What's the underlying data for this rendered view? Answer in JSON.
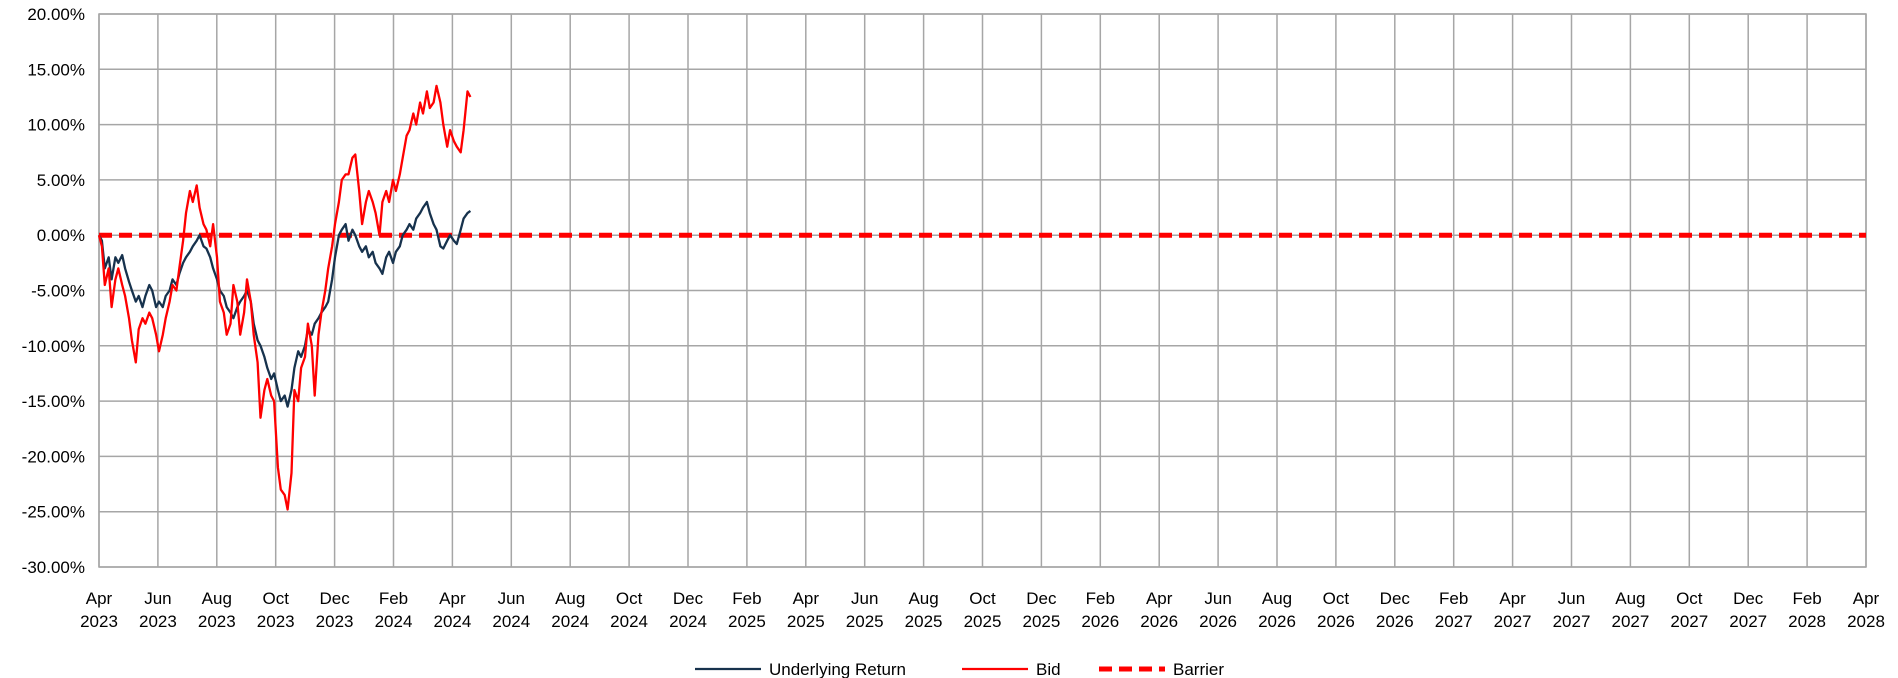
{
  "chart_data": {
    "type": "line",
    "title": "",
    "xlabel": "",
    "ylabel": "",
    "grid": true,
    "legend_position": "bottom",
    "ylim": [
      -0.3,
      0.2
    ],
    "y_ticks": [
      "20.00%",
      "15.00%",
      "10.00%",
      "5.00%",
      "0.00%",
      "-5.00%",
      "-10.00%",
      "-15.00%",
      "-20.00%",
      "-25.00%",
      "-30.00%"
    ],
    "y_tick_values": [
      0.2,
      0.15,
      0.1,
      0.05,
      0.0,
      -0.05,
      -0.1,
      -0.15,
      -0.2,
      -0.25,
      -0.3
    ],
    "x_ticks": [
      {
        "month": "Apr",
        "year": "2023"
      },
      {
        "month": "Jun",
        "year": "2023"
      },
      {
        "month": "Aug",
        "year": "2023"
      },
      {
        "month": "Oct",
        "year": "2023"
      },
      {
        "month": "Dec",
        "year": "2023"
      },
      {
        "month": "Feb",
        "year": "2024"
      },
      {
        "month": "Apr",
        "year": "2024"
      },
      {
        "month": "Jun",
        "year": "2024"
      },
      {
        "month": "Aug",
        "year": "2024"
      },
      {
        "month": "Oct",
        "year": "2024"
      },
      {
        "month": "Dec",
        "year": "2024"
      },
      {
        "month": "Feb",
        "year": "2025"
      },
      {
        "month": "Apr",
        "year": "2025"
      },
      {
        "month": "Jun",
        "year": "2025"
      },
      {
        "month": "Aug",
        "year": "2025"
      },
      {
        "month": "Oct",
        "year": "2025"
      },
      {
        "month": "Dec",
        "year": "2025"
      },
      {
        "month": "Feb",
        "year": "2026"
      },
      {
        "month": "Apr",
        "year": "2026"
      },
      {
        "month": "Jun",
        "year": "2026"
      },
      {
        "month": "Aug",
        "year": "2026"
      },
      {
        "month": "Oct",
        "year": "2026"
      },
      {
        "month": "Dec",
        "year": "2026"
      },
      {
        "month": "Feb",
        "year": "2027"
      },
      {
        "month": "Apr",
        "year": "2027"
      },
      {
        "month": "Jun",
        "year": "2027"
      },
      {
        "month": "Aug",
        "year": "2027"
      },
      {
        "month": "Oct",
        "year": "2027"
      },
      {
        "month": "Dec",
        "year": "2027"
      },
      {
        "month": "Feb",
        "year": "2028"
      },
      {
        "month": "Apr",
        "year": "2028"
      }
    ],
    "x_range": [
      "2023-04-01",
      "2028-04-01"
    ],
    "series": [
      {
        "name": "Underlying Return",
        "color": "#17324d",
        "style": "solid",
        "points": [
          [
            "2023-04-01",
            0.0
          ],
          [
            "2023-04-04",
            -0.005
          ],
          [
            "2023-04-07",
            -0.03
          ],
          [
            "2023-04-11",
            -0.02
          ],
          [
            "2023-04-14",
            -0.04
          ],
          [
            "2023-04-18",
            -0.02
          ],
          [
            "2023-04-21",
            -0.025
          ],
          [
            "2023-04-25",
            -0.018
          ],
          [
            "2023-04-28",
            -0.03
          ],
          [
            "2023-05-02",
            -0.042
          ],
          [
            "2023-05-05",
            -0.05
          ],
          [
            "2023-05-09",
            -0.06
          ],
          [
            "2023-05-12",
            -0.055
          ],
          [
            "2023-05-16",
            -0.065
          ],
          [
            "2023-05-19",
            -0.055
          ],
          [
            "2023-05-23",
            -0.045
          ],
          [
            "2023-05-26",
            -0.05
          ],
          [
            "2023-05-30",
            -0.065
          ],
          [
            "2023-06-02",
            -0.06
          ],
          [
            "2023-06-06",
            -0.065
          ],
          [
            "2023-06-09",
            -0.055
          ],
          [
            "2023-06-13",
            -0.05
          ],
          [
            "2023-06-16",
            -0.04
          ],
          [
            "2023-06-20",
            -0.045
          ],
          [
            "2023-06-23",
            -0.035
          ],
          [
            "2023-06-27",
            -0.025
          ],
          [
            "2023-06-30",
            -0.02
          ],
          [
            "2023-07-04",
            -0.015
          ],
          [
            "2023-07-07",
            -0.01
          ],
          [
            "2023-07-11",
            -0.005
          ],
          [
            "2023-07-14",
            0.0
          ],
          [
            "2023-07-18",
            -0.01
          ],
          [
            "2023-07-21",
            -0.012
          ],
          [
            "2023-07-25",
            -0.02
          ],
          [
            "2023-07-28",
            -0.03
          ],
          [
            "2023-08-01",
            -0.04
          ],
          [
            "2023-08-04",
            -0.05
          ],
          [
            "2023-08-08",
            -0.055
          ],
          [
            "2023-08-11",
            -0.065
          ],
          [
            "2023-08-15",
            -0.07
          ],
          [
            "2023-08-18",
            -0.075
          ],
          [
            "2023-08-22",
            -0.065
          ],
          [
            "2023-08-25",
            -0.06
          ],
          [
            "2023-08-29",
            -0.055
          ],
          [
            "2023-09-01",
            -0.05
          ],
          [
            "2023-09-05",
            -0.06
          ],
          [
            "2023-09-08",
            -0.08
          ],
          [
            "2023-09-12",
            -0.095
          ],
          [
            "2023-09-15",
            -0.1
          ],
          [
            "2023-09-19",
            -0.11
          ],
          [
            "2023-09-22",
            -0.12
          ],
          [
            "2023-09-26",
            -0.13
          ],
          [
            "2023-09-29",
            -0.125
          ],
          [
            "2023-10-03",
            -0.14
          ],
          [
            "2023-10-06",
            -0.15
          ],
          [
            "2023-10-10",
            -0.145
          ],
          [
            "2023-10-13",
            -0.155
          ],
          [
            "2023-10-17",
            -0.14
          ],
          [
            "2023-10-20",
            -0.12
          ],
          [
            "2023-10-24",
            -0.105
          ],
          [
            "2023-10-27",
            -0.11
          ],
          [
            "2023-10-31",
            -0.1
          ],
          [
            "2023-11-03",
            -0.085
          ],
          [
            "2023-11-07",
            -0.09
          ],
          [
            "2023-11-10",
            -0.08
          ],
          [
            "2023-11-14",
            -0.075
          ],
          [
            "2023-11-17",
            -0.07
          ],
          [
            "2023-11-21",
            -0.065
          ],
          [
            "2023-11-24",
            -0.06
          ],
          [
            "2023-11-28",
            -0.04
          ],
          [
            "2023-12-01",
            -0.02
          ],
          [
            "2023-12-05",
            0.0
          ],
          [
            "2023-12-08",
            0.005
          ],
          [
            "2023-12-12",
            0.01
          ],
          [
            "2023-12-15",
            -0.005
          ],
          [
            "2023-12-19",
            0.005
          ],
          [
            "2023-12-22",
            0.0
          ],
          [
            "2023-12-26",
            -0.01
          ],
          [
            "2023-12-29",
            -0.015
          ],
          [
            "2024-01-02",
            -0.01
          ],
          [
            "2024-01-05",
            -0.02
          ],
          [
            "2024-01-09",
            -0.015
          ],
          [
            "2024-01-12",
            -0.025
          ],
          [
            "2024-01-16",
            -0.03
          ],
          [
            "2024-01-19",
            -0.035
          ],
          [
            "2024-01-23",
            -0.02
          ],
          [
            "2024-01-26",
            -0.015
          ],
          [
            "2024-01-30",
            -0.025
          ],
          [
            "2024-02-02",
            -0.015
          ],
          [
            "2024-02-06",
            -0.01
          ],
          [
            "2024-02-09",
            0.0
          ],
          [
            "2024-02-13",
            0.005
          ],
          [
            "2024-02-16",
            0.01
          ],
          [
            "2024-02-20",
            0.005
          ],
          [
            "2024-02-23",
            0.015
          ],
          [
            "2024-02-27",
            0.02
          ],
          [
            "2024-03-01",
            0.025
          ],
          [
            "2024-03-05",
            0.03
          ],
          [
            "2024-03-08",
            0.02
          ],
          [
            "2024-03-12",
            0.01
          ],
          [
            "2024-03-15",
            0.005
          ],
          [
            "2024-03-19",
            -0.01
          ],
          [
            "2024-03-22",
            -0.012
          ],
          [
            "2024-03-26",
            -0.005
          ],
          [
            "2024-03-29",
            0.0
          ],
          [
            "2024-04-02",
            -0.005
          ],
          [
            "2024-04-05",
            -0.008
          ],
          [
            "2024-04-09",
            0.005
          ],
          [
            "2024-04-12",
            0.015
          ],
          [
            "2024-04-16",
            0.02
          ],
          [
            "2024-04-19",
            0.022
          ]
        ]
      },
      {
        "name": "Bid",
        "color": "#ff0000",
        "style": "solid",
        "points": [
          [
            "2023-04-01",
            0.0
          ],
          [
            "2023-04-04",
            -0.01
          ],
          [
            "2023-04-07",
            -0.045
          ],
          [
            "2023-04-11",
            -0.03
          ],
          [
            "2023-04-14",
            -0.065
          ],
          [
            "2023-04-18",
            -0.04
          ],
          [
            "2023-04-21",
            -0.03
          ],
          [
            "2023-04-25",
            -0.045
          ],
          [
            "2023-04-28",
            -0.055
          ],
          [
            "2023-05-02",
            -0.075
          ],
          [
            "2023-05-05",
            -0.095
          ],
          [
            "2023-05-09",
            -0.115
          ],
          [
            "2023-05-12",
            -0.085
          ],
          [
            "2023-05-16",
            -0.075
          ],
          [
            "2023-05-19",
            -0.08
          ],
          [
            "2023-05-23",
            -0.07
          ],
          [
            "2023-05-26",
            -0.075
          ],
          [
            "2023-05-30",
            -0.09
          ],
          [
            "2023-06-02",
            -0.105
          ],
          [
            "2023-06-06",
            -0.09
          ],
          [
            "2023-06-09",
            -0.075
          ],
          [
            "2023-06-13",
            -0.06
          ],
          [
            "2023-06-16",
            -0.045
          ],
          [
            "2023-06-20",
            -0.05
          ],
          [
            "2023-06-23",
            -0.03
          ],
          [
            "2023-06-27",
            -0.005
          ],
          [
            "2023-06-30",
            0.02
          ],
          [
            "2023-07-04",
            0.04
          ],
          [
            "2023-07-07",
            0.03
          ],
          [
            "2023-07-11",
            0.045
          ],
          [
            "2023-07-14",
            0.025
          ],
          [
            "2023-07-18",
            0.01
          ],
          [
            "2023-07-21",
            0.005
          ],
          [
            "2023-07-25",
            -0.01
          ],
          [
            "2023-07-28",
            0.01
          ],
          [
            "2023-08-01",
            -0.02
          ],
          [
            "2023-08-04",
            -0.06
          ],
          [
            "2023-08-08",
            -0.07
          ],
          [
            "2023-08-11",
            -0.09
          ],
          [
            "2023-08-15",
            -0.08
          ],
          [
            "2023-08-18",
            -0.045
          ],
          [
            "2023-08-22",
            -0.06
          ],
          [
            "2023-08-25",
            -0.09
          ],
          [
            "2023-08-29",
            -0.07
          ],
          [
            "2023-09-01",
            -0.04
          ],
          [
            "2023-09-05",
            -0.06
          ],
          [
            "2023-09-08",
            -0.09
          ],
          [
            "2023-09-12",
            -0.115
          ],
          [
            "2023-09-15",
            -0.165
          ],
          [
            "2023-09-19",
            -0.14
          ],
          [
            "2023-09-22",
            -0.13
          ],
          [
            "2023-09-26",
            -0.145
          ],
          [
            "2023-09-29",
            -0.15
          ],
          [
            "2023-10-03",
            -0.21
          ],
          [
            "2023-10-06",
            -0.23
          ],
          [
            "2023-10-10",
            -0.235
          ],
          [
            "2023-10-13",
            -0.248
          ],
          [
            "2023-10-17",
            -0.215
          ],
          [
            "2023-10-20",
            -0.14
          ],
          [
            "2023-10-24",
            -0.15
          ],
          [
            "2023-10-27",
            -0.12
          ],
          [
            "2023-10-31",
            -0.11
          ],
          [
            "2023-11-03",
            -0.08
          ],
          [
            "2023-11-07",
            -0.1
          ],
          [
            "2023-11-10",
            -0.145
          ],
          [
            "2023-11-14",
            -0.09
          ],
          [
            "2023-11-17",
            -0.07
          ],
          [
            "2023-11-21",
            -0.05
          ],
          [
            "2023-11-24",
            -0.03
          ],
          [
            "2023-11-28",
            -0.01
          ],
          [
            "2023-12-01",
            0.01
          ],
          [
            "2023-12-05",
            0.03
          ],
          [
            "2023-12-08",
            0.05
          ],
          [
            "2023-12-12",
            0.055
          ],
          [
            "2023-12-15",
            0.055
          ],
          [
            "2023-12-19",
            0.07
          ],
          [
            "2023-12-22",
            0.073
          ],
          [
            "2023-12-26",
            0.04
          ],
          [
            "2023-12-29",
            0.01
          ],
          [
            "2024-01-02",
            0.03
          ],
          [
            "2024-01-05",
            0.04
          ],
          [
            "2024-01-09",
            0.03
          ],
          [
            "2024-01-12",
            0.02
          ],
          [
            "2024-01-16",
            0.0
          ],
          [
            "2024-01-19",
            0.03
          ],
          [
            "2024-01-23",
            0.04
          ],
          [
            "2024-01-26",
            0.03
          ],
          [
            "2024-01-30",
            0.05
          ],
          [
            "2024-02-02",
            0.04
          ],
          [
            "2024-02-06",
            0.055
          ],
          [
            "2024-02-09",
            0.07
          ],
          [
            "2024-02-13",
            0.09
          ],
          [
            "2024-02-16",
            0.095
          ],
          [
            "2024-02-20",
            0.11
          ],
          [
            "2024-02-23",
            0.1
          ],
          [
            "2024-02-27",
            0.12
          ],
          [
            "2024-03-01",
            0.11
          ],
          [
            "2024-03-05",
            0.13
          ],
          [
            "2024-03-08",
            0.115
          ],
          [
            "2024-03-12",
            0.12
          ],
          [
            "2024-03-15",
            0.135
          ],
          [
            "2024-03-19",
            0.12
          ],
          [
            "2024-03-22",
            0.1
          ],
          [
            "2024-03-26",
            0.08
          ],
          [
            "2024-03-29",
            0.095
          ],
          [
            "2024-04-02",
            0.085
          ],
          [
            "2024-04-05",
            0.08
          ],
          [
            "2024-04-09",
            0.075
          ],
          [
            "2024-04-12",
            0.095
          ],
          [
            "2024-04-16",
            0.13
          ],
          [
            "2024-04-19",
            0.125
          ]
        ]
      },
      {
        "name": "Barrier",
        "color": "#ff0000",
        "style": "dashed",
        "points": [
          [
            "2023-04-01",
            0.0
          ],
          [
            "2028-04-01",
            0.0
          ]
        ]
      }
    ]
  }
}
